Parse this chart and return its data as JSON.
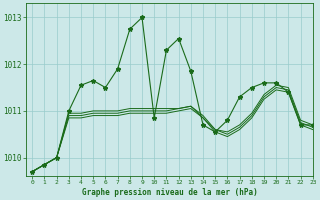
{
  "title": "Graphe pression niveau de la mer (hPa)",
  "background_color": "#cce8e8",
  "grid_color": "#99cccc",
  "line_color": "#1a6b1a",
  "xlim": [
    -0.5,
    23
  ],
  "ylim": [
    1009.6,
    1013.3
  ],
  "yticks": [
    1010,
    1011,
    1012,
    1013
  ],
  "xticks": [
    0,
    1,
    2,
    3,
    4,
    5,
    6,
    7,
    8,
    9,
    10,
    11,
    12,
    13,
    14,
    15,
    16,
    17,
    18,
    19,
    20,
    21,
    22,
    23
  ],
  "series_volatile": [
    1009.7,
    1009.85,
    1010.0,
    1011.0,
    1011.55,
    1011.65,
    1011.5,
    1011.9,
    1012.75,
    1013.0,
    1010.85,
    1012.3,
    1012.55,
    1011.85,
    1010.7,
    1010.55,
    1010.8,
    1011.3,
    1011.5,
    1011.6,
    1011.6,
    1011.4,
    1010.7,
    1010.7
  ],
  "series_smooth1": [
    1009.7,
    1009.85,
    1010.0,
    1010.95,
    1010.95,
    1011.0,
    1011.0,
    1011.0,
    1011.05,
    1011.05,
    1011.05,
    1011.05,
    1011.05,
    1011.1,
    1010.85,
    1010.6,
    1010.55,
    1010.7,
    1010.95,
    1011.35,
    1011.55,
    1011.5,
    1010.8,
    1010.7
  ],
  "series_smooth2": [
    1009.7,
    1009.85,
    1010.0,
    1010.9,
    1010.9,
    1010.95,
    1010.95,
    1010.95,
    1011.0,
    1011.0,
    1011.0,
    1011.0,
    1011.05,
    1011.1,
    1010.9,
    1010.6,
    1010.5,
    1010.65,
    1010.9,
    1011.3,
    1011.5,
    1011.45,
    1010.75,
    1010.65
  ],
  "series_smooth3": [
    1009.7,
    1009.85,
    1010.0,
    1010.85,
    1010.85,
    1010.9,
    1010.9,
    1010.9,
    1010.95,
    1010.95,
    1010.95,
    1010.95,
    1011.0,
    1011.05,
    1010.85,
    1010.55,
    1010.45,
    1010.6,
    1010.85,
    1011.25,
    1011.45,
    1011.4,
    1010.7,
    1010.6
  ]
}
